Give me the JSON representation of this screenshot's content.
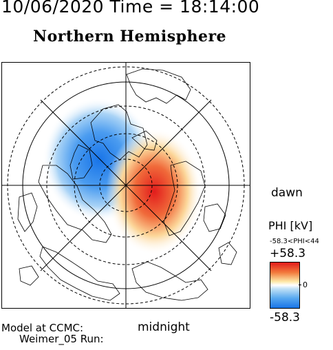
{
  "header": {
    "time_line": "10/06/2020 Time = 18:14:00"
  },
  "map": {
    "title": "Northern Hemisphere",
    "projection": "polar stereographic, magnetic pole centered",
    "potential_field": {
      "negative_cell": {
        "sector": "dusk/pre-midnight",
        "color": "#1874e8"
      },
      "positive_cell": {
        "sector": "dawn/post-noon",
        "color": "#e21c1c"
      }
    }
  },
  "labels": {
    "dawn": "dawn",
    "midnight": "midnight"
  },
  "colorbar": {
    "title": "PHI [kV]",
    "range_text": "-58.3<PHI<44",
    "max_label": "+58.3",
    "zero_label": "0",
    "min_label": "-58.3",
    "max_value": 58.3,
    "min_value": -58.3,
    "colors": {
      "high": "#e21c1c",
      "mid": "#ffffff",
      "low": "#1874e8"
    }
  },
  "footer": {
    "model_line": "Model at CCMC:",
    "run_line": "Weimer_05 Run:"
  }
}
